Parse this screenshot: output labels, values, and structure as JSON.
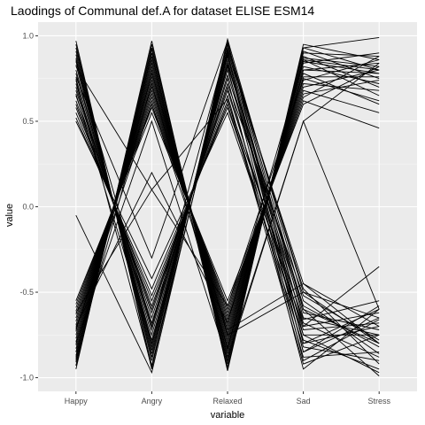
{
  "chart_data": {
    "type": "line",
    "title": "Laodings of Communal def.A for dataset ELISE ESM14",
    "xlabel": "variable",
    "ylabel": "value",
    "categories": [
      "Happy",
      "Angry",
      "Relaxed",
      "Sad",
      "Stress"
    ],
    "ylim": [
      -1.08,
      1.08
    ],
    "yticks": [
      1.0,
      0.5,
      0.0,
      -0.5,
      -1.0
    ],
    "ytick_labels": [
      "1.0",
      "0.5",
      "0.0",
      "-0.5",
      "-1.0"
    ],
    "grid": true,
    "legend": "none",
    "colors": {
      "panel": "#ebebeb",
      "grid_major": "#ffffff",
      "grid_minor": "#f5f5f5",
      "line": "#000000",
      "tick": "#333333"
    },
    "series": [
      {
        "values": [
          0.97,
          -0.95,
          0.98,
          -0.55,
          -0.86
        ]
      },
      {
        "values": [
          0.95,
          -0.93,
          0.96,
          -0.6,
          -0.8
        ]
      },
      {
        "values": [
          0.93,
          -0.9,
          0.95,
          -0.65,
          -0.75
        ]
      },
      {
        "values": [
          0.91,
          -0.88,
          0.93,
          -0.48,
          -0.92
        ]
      },
      {
        "values": [
          0.89,
          -0.86,
          0.92,
          -0.7,
          -0.62
        ]
      },
      {
        "values": [
          0.87,
          -0.84,
          0.9,
          -0.75,
          -0.97
        ]
      },
      {
        "values": [
          0.85,
          -0.82,
          0.88,
          -0.8,
          -0.7
        ]
      },
      {
        "values": [
          0.83,
          -0.8,
          0.86,
          -0.85,
          -0.58
        ]
      },
      {
        "values": [
          0.8,
          -0.78,
          0.84,
          -0.58,
          -0.82
        ]
      },
      {
        "values": [
          0.78,
          -0.75,
          0.82,
          -0.9,
          -0.66
        ]
      },
      {
        "values": [
          0.75,
          -0.72,
          0.8,
          -0.68,
          -0.88
        ]
      },
      {
        "values": [
          0.72,
          -0.7,
          0.77,
          -0.62,
          -0.72
        ]
      },
      {
        "values": [
          0.7,
          -0.68,
          0.75,
          -0.95,
          -0.6
        ]
      },
      {
        "values": [
          0.68,
          -0.65,
          0.72,
          -0.52,
          -0.78
        ]
      },
      {
        "values": [
          0.65,
          -0.62,
          0.7,
          -0.78,
          -0.95
        ]
      },
      {
        "values": [
          0.62,
          -0.6,
          0.68,
          -0.72,
          -0.68
        ]
      },
      {
        "values": [
          0.6,
          -0.58,
          0.65,
          -0.88,
          -0.85
        ]
      },
      {
        "values": [
          0.58,
          -0.55,
          0.62,
          -0.66,
          -0.55
        ]
      },
      {
        "values": [
          0.55,
          -0.52,
          0.6,
          -0.82,
          -0.9
        ]
      },
      {
        "values": [
          0.52,
          -0.48,
          0.58,
          -0.7,
          -0.35
        ]
      },
      {
        "values": [
          0.5,
          -0.42,
          0.55,
          -0.75,
          -0.75
        ]
      },
      {
        "values": [
          0.86,
          -0.7,
          0.95,
          -0.5,
          -0.8
        ]
      },
      {
        "values": [
          0.74,
          -0.94,
          0.89,
          -0.85,
          -0.65
        ]
      },
      {
        "values": [
          0.66,
          -0.8,
          0.83,
          -0.6,
          -0.99
        ]
      },
      {
        "values": [
          -0.05,
          -0.97,
          0.91,
          -0.45,
          -0.7
        ]
      },
      {
        "values": [
          0.82,
          0.1,
          0.63,
          -0.92,
          -0.75
        ]
      },
      {
        "values": [
          0.76,
          -0.3,
          0.97,
          -0.8,
          -0.6
        ]
      },
      {
        "values": [
          -0.95,
          0.97,
          -0.96,
          0.95,
          0.86
        ]
      },
      {
        "values": [
          -0.93,
          0.95,
          -0.94,
          0.93,
          0.8
        ]
      },
      {
        "values": [
          -0.91,
          0.93,
          -0.92,
          0.91,
          0.75
        ]
      },
      {
        "values": [
          -0.89,
          0.9,
          -0.9,
          0.9,
          0.88
        ]
      },
      {
        "values": [
          -0.87,
          0.88,
          -0.88,
          0.88,
          0.7
        ]
      },
      {
        "values": [
          -0.85,
          0.86,
          -0.86,
          0.87,
          0.82
        ]
      },
      {
        "values": [
          -0.83,
          0.84,
          -0.84,
          0.86,
          0.65
        ]
      },
      {
        "values": [
          -0.81,
          0.82,
          -0.82,
          0.85,
          0.78
        ]
      },
      {
        "values": [
          -0.79,
          0.8,
          -0.8,
          0.84,
          0.9
        ]
      },
      {
        "values": [
          -0.77,
          0.78,
          -0.78,
          0.82,
          0.72
        ]
      },
      {
        "values": [
          -0.75,
          0.76,
          -0.76,
          0.8,
          0.84
        ]
      },
      {
        "values": [
          -0.73,
          0.74,
          -0.74,
          0.78,
          0.6
        ]
      },
      {
        "values": [
          -0.71,
          0.72,
          -0.72,
          0.76,
          0.76
        ]
      },
      {
        "values": [
          -0.69,
          0.7,
          -0.7,
          0.74,
          0.86
        ]
      },
      {
        "values": [
          -0.67,
          0.68,
          -0.68,
          0.72,
          0.68
        ]
      },
      {
        "values": [
          -0.65,
          0.66,
          -0.66,
          0.7,
          0.8
        ]
      },
      {
        "values": [
          -0.63,
          0.64,
          -0.64,
          0.68,
          0.55
        ]
      },
      {
        "values": [
          -0.61,
          0.62,
          -0.62,
          0.66,
          0.74
        ]
      },
      {
        "values": [
          -0.59,
          0.6,
          -0.6,
          0.64,
          0.88
        ]
      },
      {
        "values": [
          -0.57,
          0.58,
          -0.58,
          0.62,
          0.46
        ]
      },
      {
        "values": [
          -0.55,
          0.55,
          -0.55,
          0.6,
          0.82
        ]
      },
      {
        "values": [
          -0.93,
          0.9,
          -0.95,
          0.93,
          0.99
        ]
      },
      {
        "values": [
          -0.88,
          0.72,
          -0.83,
          0.8,
          0.78
        ]
      },
      {
        "values": [
          -0.8,
          0.5,
          -0.9,
          0.5,
          0.84
        ]
      },
      {
        "values": [
          -0.85,
          0.78,
          -0.75,
          -0.5,
          -0.65
        ]
      },
      {
        "values": [
          -0.72,
          0.6,
          -0.72,
          -0.45,
          -0.8
        ]
      },
      {
        "values": [
          -0.9,
          0.92,
          -0.88,
          0.5,
          -0.6
        ]
      },
      {
        "values": [
          -0.7,
          0.2,
          -0.68,
          0.86,
          0.8
        ]
      },
      {
        "values": [
          -0.62,
          0.1,
          -0.58,
          0.75,
          0.62
        ]
      }
    ]
  }
}
